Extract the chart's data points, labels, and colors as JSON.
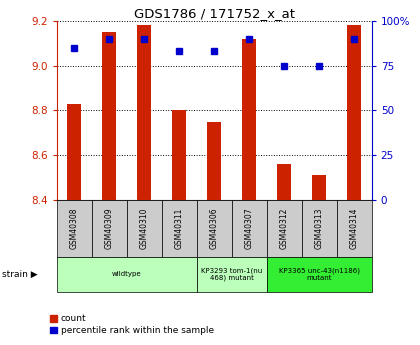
{
  "title": "GDS1786 / 171752_x_at",
  "samples": [
    "GSM40308",
    "GSM40309",
    "GSM40310",
    "GSM40311",
    "GSM40306",
    "GSM40307",
    "GSM40312",
    "GSM40313",
    "GSM40314"
  ],
  "count_values": [
    8.83,
    9.15,
    9.18,
    8.8,
    8.75,
    9.12,
    8.56,
    8.51,
    9.18
  ],
  "percentile_values": [
    85,
    90,
    90,
    83,
    83,
    90,
    75,
    75,
    90
  ],
  "ylim_left": [
    8.4,
    9.2
  ],
  "ylim_right": [
    0,
    100
  ],
  "yticks_left": [
    8.4,
    8.6,
    8.8,
    9.0,
    9.2
  ],
  "yticks_right": [
    0,
    25,
    50,
    75,
    100
  ],
  "bar_color": "#CC2200",
  "dot_color": "#0000CC",
  "bar_width": 0.4,
  "group_data": [
    {
      "start": 0,
      "end": 3,
      "label": "wildtype",
      "color": "#BBFFBB"
    },
    {
      "start": 4,
      "end": 5,
      "label": "KP3293 tom-1(nu\n468) mutant",
      "color": "#BBFFBB"
    },
    {
      "start": 6,
      "end": 8,
      "label": "KP3365 unc-43(n1186)\nmutant",
      "color": "#33EE33"
    }
  ],
  "legend_count_label": "count",
  "legend_pct_label": "percentile rank within the sample",
  "tick_color_left": "#CC2200",
  "tick_color_right": "#0000CC",
  "cell_bg": "#CCCCCC"
}
